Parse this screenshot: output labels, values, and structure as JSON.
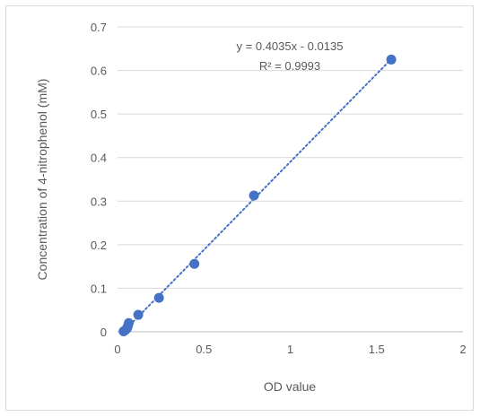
{
  "chart_data": {
    "type": "scatter",
    "title": "",
    "xlabel": "OD value",
    "ylabel": "Concentration of 4-nitrophenol (mM)",
    "xlim": [
      0,
      2
    ],
    "ylim": [
      0,
      0.7
    ],
    "x_ticks": [
      "0",
      "0.5",
      "1",
      "1.5",
      "2"
    ],
    "y_ticks": [
      "0",
      "0.1",
      "0.2",
      "0.3",
      "0.4",
      "0.5",
      "0.6",
      "0.7"
    ],
    "grid": "horizontal",
    "series": [
      {
        "color": "#4472c4",
        "points": [
          {
            "x": 0.035,
            "y": 0.001
          },
          {
            "x": 0.045,
            "y": 0.004
          },
          {
            "x": 0.055,
            "y": 0.008
          },
          {
            "x": 0.06,
            "y": 0.013
          },
          {
            "x": 0.065,
            "y": 0.02
          },
          {
            "x": 0.12,
            "y": 0.039
          },
          {
            "x": 0.24,
            "y": 0.078
          },
          {
            "x": 0.445,
            "y": 0.156
          },
          {
            "x": 0.79,
            "y": 0.313
          },
          {
            "x": 1.585,
            "y": 0.625
          }
        ]
      }
    ],
    "trendline": {
      "style": "dotted",
      "color": "#4472c4",
      "slope": 0.4035,
      "intercept": -0.0135,
      "equation_label": "y = 0.4035x - 0.0135",
      "r2_label": "R² = 0.9993"
    }
  }
}
